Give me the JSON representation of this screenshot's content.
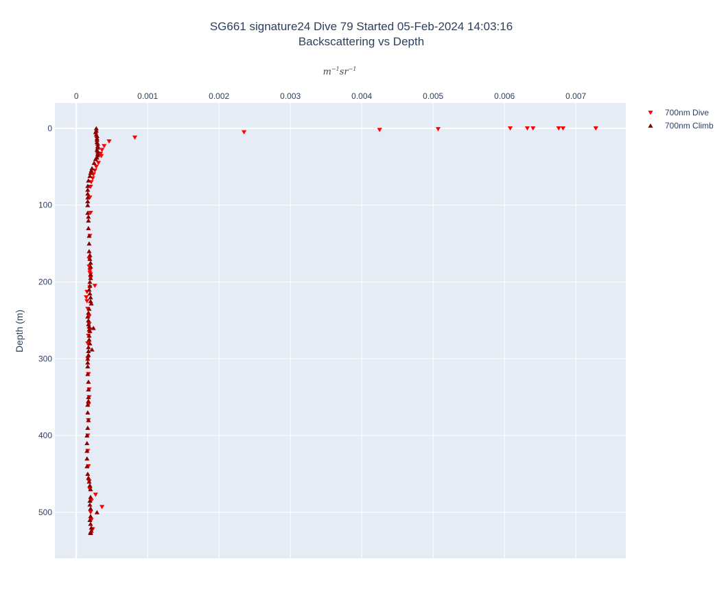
{
  "chart_data": {
    "type": "scatter",
    "title": "SG661 signature24 Dive 79 Started 05-Feb-2024 14:03:16",
    "subtitle": "Backscattering vs Depth",
    "xlabel_base": "m",
    "xlabel_exp1": "−1",
    "xlabel_mid": "sr",
    "xlabel_exp2": "−1",
    "ylabel": "Depth (m)",
    "xlim": [
      -0.0003,
      0.0077
    ],
    "ylim": [
      560,
      -33
    ],
    "y_reversed": true,
    "xaxis_position": "top",
    "grid": true,
    "legend_position": "top-right",
    "x_ticks": [
      0,
      0.001,
      0.002,
      0.003,
      0.004,
      0.005,
      0.006,
      0.007
    ],
    "x_tick_labels": [
      "0",
      "0.001",
      "0.002",
      "0.003",
      "0.004",
      "0.005",
      "0.006",
      "0.007"
    ],
    "y_ticks": [
      0,
      100,
      200,
      300,
      400,
      500
    ],
    "y_tick_labels": [
      "0",
      "100",
      "200",
      "300",
      "400",
      "500"
    ],
    "series": [
      {
        "name": "700nm Dive",
        "marker": "triangle-down",
        "color": "#ff0000",
        "x": [
          0.00728,
          0.00682,
          0.00676,
          0.0064,
          0.00632,
          0.00608,
          0.00507,
          0.00425,
          0.00235,
          0.00082,
          0.00046,
          0.00039,
          0.00036,
          0.00034,
          0.00035,
          0.00031,
          0.00028,
          0.00026,
          0.00024,
          0.00023,
          0.00021,
          0.0002,
          0.00019,
          0.0002,
          0.00019,
          0.00018,
          0.00018,
          0.00019,
          0.00019,
          0.0002,
          0.0002,
          0.00026,
          0.00019,
          0.00015,
          0.00014,
          0.00015,
          0.00016,
          0.00018,
          0.00018,
          0.00019,
          0.00017,
          0.00016,
          0.00016,
          0.00017,
          0.00018,
          0.00018,
          0.00017,
          0.00017,
          0.00016,
          0.00016,
          0.00017,
          0.00018,
          0.00019,
          0.00027,
          0.00021,
          0.00036,
          0.0002,
          0.00021,
          0.00023
        ],
        "y": [
          0,
          0,
          0,
          0,
          0,
          0,
          1,
          2,
          5,
          12,
          17,
          23,
          28,
          33,
          36,
          45,
          50,
          55,
          60,
          65,
          70,
          76,
          90,
          110,
          140,
          170,
          180,
          185,
          188,
          190,
          195,
          205,
          207,
          213,
          220,
          225,
          235,
          245,
          255,
          262,
          270,
          280,
          300,
          320,
          340,
          350,
          360,
          380,
          400,
          420,
          440,
          460,
          470,
          477,
          485,
          493,
          500,
          510,
          522
        ]
      },
      {
        "name": "700nm Climb",
        "marker": "triangle-up",
        "color": "#8b0000",
        "x": [
          0.00028,
          0.00028,
          0.00027,
          0.00028,
          0.00029,
          0.00029,
          0.00029,
          0.00029,
          0.0003,
          0.0003,
          0.0003,
          0.00029,
          0.0003,
          0.0003,
          0.0003,
          0.00029,
          0.00027,
          0.00025,
          0.00022,
          0.00021,
          0.0002,
          0.00019,
          0.00017,
          0.00016,
          0.00016,
          0.00016,
          0.00016,
          0.00016,
          0.00016,
          0.00016,
          0.00017,
          0.00017,
          0.00017,
          0.00018,
          0.00018,
          0.00018,
          0.00019,
          0.00019,
          0.0002,
          0.0002,
          0.0002,
          0.0002,
          0.00019,
          0.00019,
          0.00018,
          0.00019,
          0.0002,
          0.0002,
          0.00021,
          0.00018,
          0.00017,
          0.00016,
          0.00017,
          0.00017,
          0.00018,
          0.00018,
          0.00019,
          0.00024,
          0.00018,
          0.00018,
          0.00019,
          0.00017,
          0.00017,
          0.00022,
          0.00017,
          0.00016,
          0.00016,
          0.00016,
          0.00016,
          0.00017,
          0.00017,
          0.00017,
          0.00017,
          0.00016,
          0.00016,
          0.00017,
          0.00016,
          0.00015,
          0.00015,
          0.00015,
          0.00015,
          0.00015,
          0.00016,
          0.00017,
          0.00018,
          0.00019,
          0.0002,
          0.0002,
          0.00019,
          0.00019,
          0.0002,
          0.00029,
          0.0002,
          0.00019,
          0.0002,
          0.00021,
          0.00021,
          0.0002,
          0.0002
        ],
        "y": [
          0,
          3,
          5,
          8,
          10,
          13,
          15,
          18,
          20,
          23,
          25,
          28,
          30,
          33,
          35,
          38,
          40,
          45,
          52,
          55,
          58,
          62,
          68,
          75,
          80,
          85,
          90,
          95,
          100,
          110,
          115,
          120,
          130,
          140,
          150,
          160,
          165,
          170,
          175,
          180,
          190,
          195,
          200,
          205,
          210,
          215,
          220,
          225,
          228,
          235,
          240,
          245,
          250,
          255,
          258,
          262,
          264,
          260,
          270,
          275,
          280,
          285,
          290,
          288,
          295,
          300,
          305,
          310,
          320,
          330,
          340,
          350,
          355,
          360,
          370,
          380,
          390,
          400,
          410,
          420,
          430,
          440,
          450,
          455,
          460,
          465,
          470,
          480,
          485,
          490,
          495,
          500,
          505,
          510,
          515,
          520,
          524,
          526,
          527
        ]
      }
    ]
  }
}
